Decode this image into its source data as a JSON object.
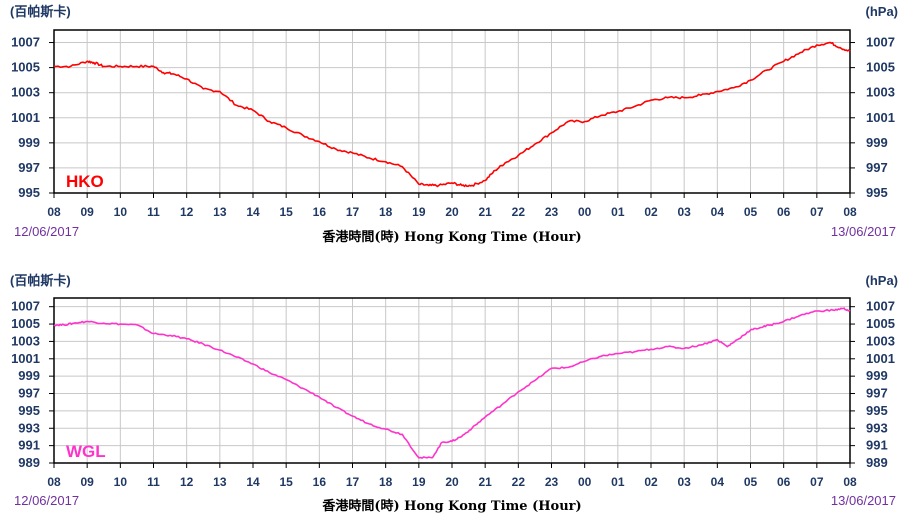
{
  "chart_data": [
    {
      "type": "line",
      "station_label": "HKO",
      "unit_left": "(百帕斯卡)",
      "unit_right": "(hPa)",
      "xlabel": "香港時間(時) Hong Kong Time (Hour)",
      "start_date": "12/06/2017",
      "end_date": "13/06/2017",
      "x_tick_labels": [
        "08",
        "09",
        "10",
        "11",
        "12",
        "13",
        "14",
        "15",
        "16",
        "17",
        "18",
        "19",
        "20",
        "21",
        "22",
        "23",
        "00",
        "01",
        "02",
        "03",
        "04",
        "05",
        "06",
        "07",
        "08"
      ],
      "ylim": [
        995,
        1008
      ],
      "y_ticks": [
        1007,
        1005,
        1003,
        1001,
        999,
        997,
        995
      ],
      "grid": true,
      "color": "#ff0000",
      "series": [
        {
          "x": [
            0,
            0.5,
            1,
            1.2,
            1.5,
            2,
            2.5,
            3,
            3.3,
            3.6,
            4,
            4.5,
            5,
            5.5,
            6,
            6.5,
            7,
            7.5,
            8,
            8.5,
            9,
            9.5,
            10,
            10.5,
            11,
            11.3,
            11.6,
            12,
            12.3,
            12.6,
            13,
            13.3,
            13.6,
            14,
            14.5,
            15,
            15.5,
            16,
            16.5,
            17,
            17.5,
            18,
            18.5,
            19,
            19.5,
            20,
            20.5,
            21,
            21.5,
            22,
            22.5,
            23,
            23.4,
            23.7,
            24
          ],
          "y": [
            1005.1,
            1005.1,
            1005.5,
            1005.4,
            1005.1,
            1005.1,
            1005.1,
            1005.1,
            1004.6,
            1004.5,
            1004.1,
            1003.3,
            1003.1,
            1002.0,
            1001.6,
            1000.7,
            1000.2,
            999.6,
            999.1,
            998.5,
            998.2,
            997.8,
            997.5,
            997.1,
            995.7,
            995.6,
            995.6,
            995.8,
            995.6,
            995.6,
            996.0,
            996.8,
            997.4,
            998.0,
            998.9,
            999.8,
            1000.7,
            1000.7,
            1001.2,
            1001.5,
            1001.9,
            1002.4,
            1002.6,
            1002.6,
            1002.8,
            1003.1,
            1003.4,
            1004.0,
            1004.8,
            1005.5,
            1006.2,
            1006.8,
            1007.0,
            1006.6,
            1006.3
          ]
        }
      ]
    },
    {
      "type": "line",
      "station_label": "WGL",
      "unit_left": "(百帕斯卡)",
      "unit_right": "(hPa)",
      "xlabel": "香港時間(時) Hong Kong Time (Hour)",
      "start_date": "12/06/2017",
      "end_date": "13/06/2017",
      "x_tick_labels": [
        "08",
        "09",
        "10",
        "11",
        "12",
        "13",
        "14",
        "15",
        "16",
        "17",
        "18",
        "19",
        "20",
        "21",
        "22",
        "23",
        "00",
        "01",
        "02",
        "03",
        "04",
        "05",
        "06",
        "07",
        "08"
      ],
      "ylim": [
        989,
        1008
      ],
      "y_ticks": [
        1007,
        1005,
        1003,
        1001,
        999,
        997,
        995,
        993,
        991,
        989
      ],
      "grid": true,
      "color": "#ff33cc",
      "series": [
        {
          "x": [
            0,
            0.3,
            0.6,
            1,
            1.5,
            2,
            2.5,
            3,
            3.5,
            4,
            4.5,
            5,
            5.5,
            6,
            6.5,
            7,
            7.5,
            8,
            8.5,
            9,
            9.5,
            10,
            10.5,
            11,
            11.4,
            11.7,
            12,
            12.3,
            12.6,
            13,
            13.5,
            14,
            14.5,
            15,
            15.5,
            16,
            16.5,
            17,
            17.5,
            18,
            18.5,
            19,
            19.5,
            20,
            20.3,
            20.6,
            21,
            21.3,
            21.6,
            22,
            22.5,
            23,
            23.5,
            23.8,
            24
          ],
          "y": [
            1004.9,
            1004.9,
            1005.1,
            1005.3,
            1005.1,
            1005.0,
            1004.9,
            1003.9,
            1003.7,
            1003.3,
            1002.7,
            1002.0,
            1001.2,
            1000.4,
            999.4,
            998.6,
            997.6,
            996.6,
            995.4,
            994.4,
            993.5,
            992.9,
            992.3,
            989.6,
            989.6,
            991.4,
            991.5,
            992.1,
            993.0,
            994.3,
            995.7,
            997.2,
            998.5,
            999.9,
            1000.0,
            1000.7,
            1001.3,
            1001.6,
            1001.8,
            1002.1,
            1002.4,
            1002.2,
            1002.6,
            1003.2,
            1002.4,
            1003.2,
            1004.3,
            1004.6,
            1004.9,
            1005.3,
            1006.0,
            1006.5,
            1006.6,
            1006.8,
            1006.5
          ]
        }
      ]
    }
  ]
}
